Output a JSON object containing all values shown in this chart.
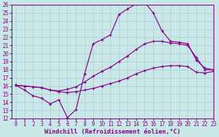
{
  "xlabel": "Windchill (Refroidissement éolien,°C)",
  "ylabel": "",
  "xlim": [
    -0.5,
    23
  ],
  "ylim": [
    12,
    26
  ],
  "xticks": [
    0,
    1,
    2,
    3,
    4,
    5,
    6,
    7,
    8,
    9,
    10,
    11,
    12,
    13,
    14,
    15,
    16,
    17,
    18,
    19,
    20,
    21,
    22,
    23
  ],
  "yticks": [
    12,
    13,
    14,
    15,
    16,
    17,
    18,
    19,
    20,
    21,
    22,
    23,
    24,
    25,
    26
  ],
  "bg_color": "#c8e8e8",
  "line_color": "#880088",
  "line1_x": [
    0,
    1,
    2,
    3,
    4,
    5,
    6,
    7,
    8,
    9,
    10,
    11,
    12,
    13,
    14,
    15,
    16,
    17,
    18,
    19,
    20,
    21,
    22,
    23
  ],
  "line1_y": [
    16.1,
    15.5,
    14.8,
    14.5,
    13.8,
    14.3,
    12.1,
    13.1,
    17.5,
    21.2,
    21.7,
    22.3,
    24.8,
    25.5,
    26.1,
    26.3,
    25.0,
    22.8,
    21.5,
    21.4,
    21.2,
    19.2,
    18.2,
    18.0
  ],
  "line2_x": [
    0,
    1,
    2,
    3,
    4,
    5,
    6,
    7,
    8,
    9,
    10,
    11,
    12,
    13,
    14,
    15,
    16,
    17,
    18,
    19,
    20,
    21,
    22,
    23
  ],
  "line2_y": [
    16.1,
    16.0,
    15.9,
    15.8,
    15.5,
    15.4,
    15.6,
    15.9,
    16.5,
    17.2,
    17.8,
    18.3,
    19.0,
    19.7,
    20.5,
    21.2,
    21.5,
    21.5,
    21.3,
    21.2,
    21.0,
    19.5,
    18.0,
    18.0
  ],
  "line3_x": [
    0,
    1,
    2,
    3,
    4,
    5,
    6,
    7,
    8,
    9,
    10,
    11,
    12,
    13,
    14,
    15,
    16,
    17,
    18,
    19,
    20,
    21,
    22,
    23
  ],
  "line3_y": [
    16.1,
    16.0,
    15.9,
    15.8,
    15.5,
    15.3,
    15.2,
    15.3,
    15.5,
    15.7,
    16.0,
    16.3,
    16.6,
    17.0,
    17.5,
    17.9,
    18.2,
    18.4,
    18.5,
    18.5,
    18.4,
    17.7,
    17.6,
    17.8
  ],
  "grid_color": "#aacccc",
  "font_size": 5.5,
  "xlabel_fontsize": 6.5,
  "marker": "+"
}
